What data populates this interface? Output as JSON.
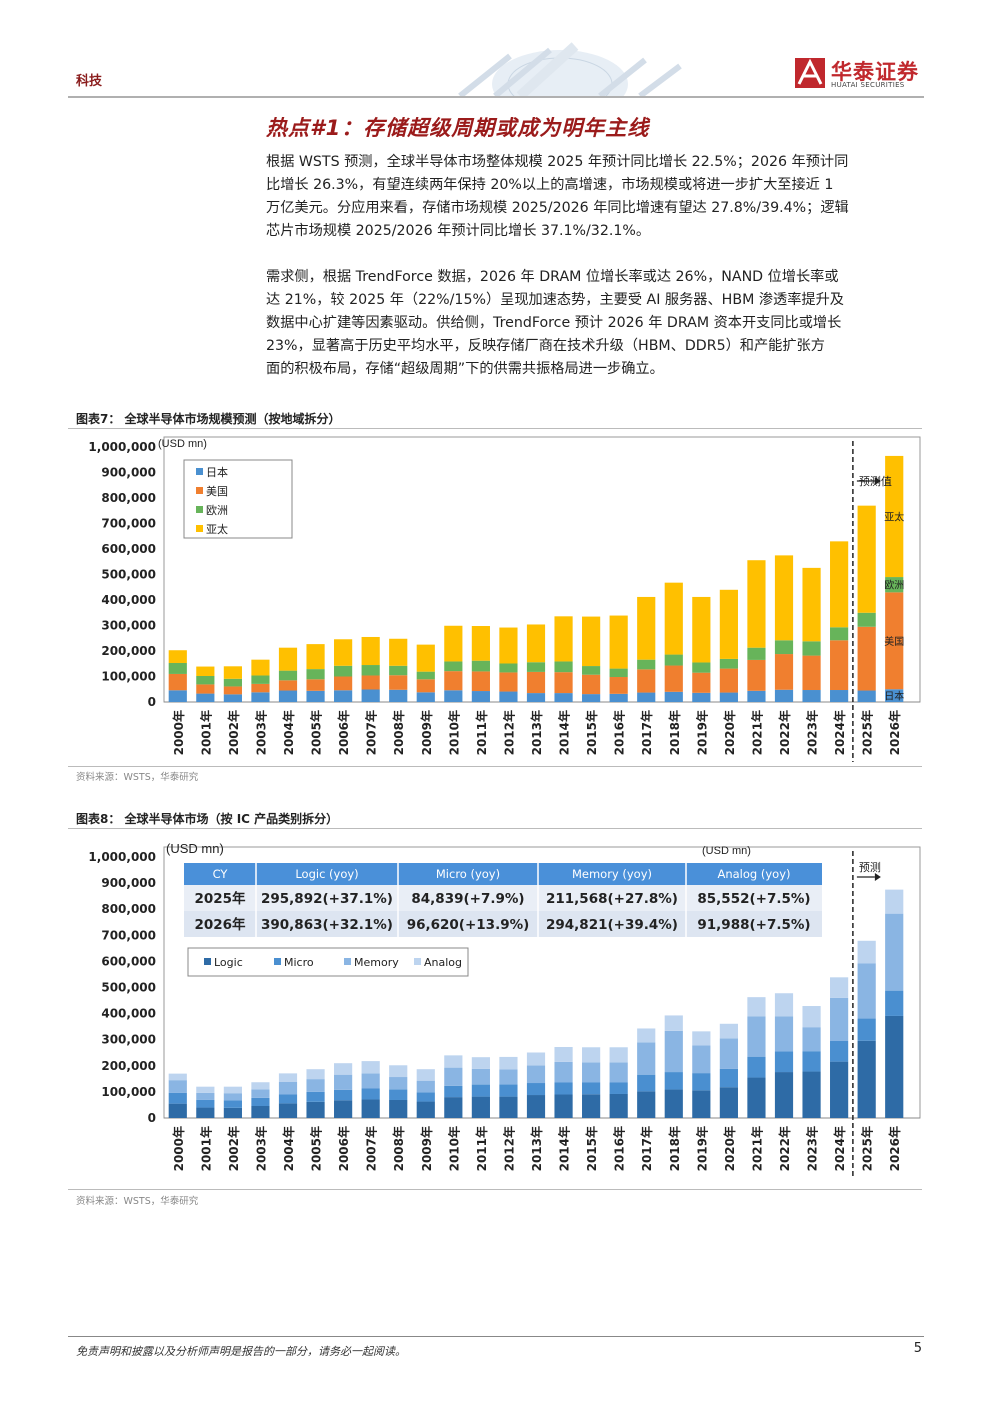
{
  "header": {
    "section": "科技",
    "logo_cn": "华泰证券",
    "logo_en": "HUATAI SECURITIES",
    "brand_color": "#c0282d"
  },
  "heading": "热点#1：存储超级周期或成为明年主线",
  "paragraph1": [
    "根据 WSTS 预测，全球半导体市场整体规模 2025 年预计同比增长 22.5%；2026 年预计同",
    "比增长 26.3%，有望连续两年保持 20%以上的高增速，市场规模或将进一步扩大至接近 1",
    "万亿美元。分应用来看，存储市场规模 2025/2026 年同比增速有望达 27.8%/39.4%；逻辑",
    "芯片市场规模 2025/2026 年预计同比增长 37.1%/32.1%。"
  ],
  "paragraph2": [
    "需求侧，根据 TrendForce 数据，2026 年 DRAM 位增长率或达 26%，NAND 位增长率或",
    "达 21%，较 2025 年（22%/15%）呈现加速态势，主要受 AI 服务器、HBM 渗透率提升及",
    "数据中心扩建等因素驱动。供给侧，TrendForce 预计 2026 年 DRAM 资本开支同比或增长",
    "23%，显著高于历史平均水平，反映存储厂商在技术升级（HBM、DDR5）和产能扩张方",
    "面的积极布局，存储“超级周期”下的供需共振格局进一步确立。"
  ],
  "figure7": {
    "title": "图表7：  全球半导体市场规模预测（按地域拆分）",
    "source": "资料来源：WSTS，华泰研究"
  },
  "figure8": {
    "title": "图表8：  全球半导体市场（按 IC 产品类别拆分）",
    "source": "资料来源：WSTS，华泰研究",
    "table": {
      "headers": [
        "CY",
        "Logic (yoy)",
        "Micro (yoy)",
        "Memory (yoy)",
        "Analog (yoy)"
      ],
      "rows": [
        [
          "2025年",
          "295,892(+37.1%)",
          "84,839(+7.9%)",
          "211,568(+27.8%)",
          "85,552(+7.5%)"
        ],
        [
          "2026年",
          "390,863(+32.1%)",
          "96,620(+13.9%)",
          "294,821(+39.4%)",
          "91,988(+7.5%)"
        ]
      ]
    }
  },
  "chart_data": [
    {
      "type": "bar",
      "stacked": true,
      "categories": [
        "2000年",
        "2001年",
        "2002年",
        "2003年",
        "2004年",
        "2005年",
        "2006年",
        "2007年",
        "2008年",
        "2009年",
        "2010年",
        "2011年",
        "2012年",
        "2013年",
        "2014年",
        "2015年",
        "2016年",
        "2017年",
        "2018年",
        "2019年",
        "2020年",
        "2021年",
        "2022年",
        "2023年",
        "2024年",
        "2025年",
        "2026年"
      ],
      "ylabel": "(USD mn)",
      "ylim": [
        0,
        1000000
      ],
      "yticks": [
        "0",
        "100,000",
        "200,000",
        "300,000",
        "400,000",
        "500,000",
        "600,000",
        "700,000",
        "800,000",
        "900,000",
        "1,000,000"
      ],
      "legend_position": "top-left",
      "forecast_label": "预测值",
      "forecast_from": "2025年",
      "series": [
        {
          "name": "日本",
          "color": "#4a90d0",
          "values": [
            46000,
            33000,
            30000,
            38000,
            45000,
            44000,
            46000,
            49000,
            48000,
            38000,
            46000,
            43000,
            41000,
            35000,
            35000,
            31000,
            32000,
            37000,
            40000,
            36000,
            37000,
            44000,
            48000,
            47000,
            47000,
            45000,
            50000
          ]
        },
        {
          "name": "美国",
          "color": "#f07f2f",
          "values": [
            64000,
            36000,
            31000,
            33000,
            40000,
            45000,
            54000,
            55000,
            57000,
            51000,
            75000,
            77000,
            75000,
            83000,
            82000,
            76000,
            66000,
            91000,
            103000,
            79000,
            94000,
            121000,
            140000,
            135000,
            195000,
            250000,
            380000
          ]
        },
        {
          "name": "欧洲",
          "color": "#67b45a",
          "values": [
            43000,
            33000,
            30000,
            33000,
            38000,
            40000,
            42000,
            41000,
            37000,
            30000,
            38000,
            42000,
            35000,
            38000,
            42000,
            34000,
            33000,
            38000,
            43000,
            40000,
            38000,
            48000,
            54000,
            56000,
            51000,
            55000,
            60000
          ]
        },
        {
          "name": "亚太",
          "color": "#ffc000",
          "values": [
            50000,
            37000,
            49000,
            62000,
            90000,
            98000,
            104000,
            110000,
            106000,
            106000,
            140000,
            136000,
            141000,
            148000,
            177000,
            194000,
            208000,
            246000,
            282000,
            257000,
            271000,
            343000,
            333000,
            288000,
            337000,
            420000,
            475000
          ]
        }
      ]
    },
    {
      "type": "bar",
      "stacked": true,
      "categories": [
        "2000年",
        "2001年",
        "2002年",
        "2003年",
        "2004年",
        "2005年",
        "2006年",
        "2007年",
        "2008年",
        "2009年",
        "2010年",
        "2011年",
        "2012年",
        "2013年",
        "2014年",
        "2015年",
        "2016年",
        "2017年",
        "2018年",
        "2019年",
        "2020年",
        "2021年",
        "2022年",
        "2023年",
        "2024年",
        "2025年",
        "2026年"
      ],
      "ylabel": "(USD mn)",
      "ylim": [
        0,
        1000000
      ],
      "yticks": [
        "0",
        "100,000",
        "200,000",
        "300,000",
        "400,000",
        "500,000",
        "600,000",
        "700,000",
        "800,000",
        "900,000",
        "1,000,000"
      ],
      "legend_position": "top-left",
      "forecast_label": "预测",
      "forecast_from": "2025年",
      "series": [
        {
          "name": "Logic",
          "color": "#2e6ba6",
          "values": [
            55000,
            40000,
            39000,
            46000,
            56000,
            62000,
            68000,
            71000,
            69000,
            63000,
            80000,
            82000,
            82000,
            88000,
            90000,
            91000,
            92000,
            102000,
            109000,
            106000,
            118000,
            155000,
            176000,
            178000,
            216000,
            296000,
            391000
          ]
        },
        {
          "name": "Micro",
          "color": "#4a8fd0",
          "values": [
            41000,
            30000,
            29000,
            31000,
            34000,
            38000,
            40000,
            42000,
            40000,
            35000,
            43000,
            46000,
            47000,
            46000,
            46000,
            45000,
            44000,
            64000,
            67000,
            66000,
            70000,
            80000,
            79000,
            78000,
            79000,
            85000,
            97000
          ]
        },
        {
          "name": "Memory",
          "color": "#8ab5e3",
          "values": [
            49000,
            26000,
            27000,
            33000,
            48000,
            49000,
            58000,
            58000,
            48000,
            45000,
            70000,
            60000,
            57000,
            67000,
            79000,
            77000,
            77000,
            124000,
            158000,
            106000,
            117000,
            154000,
            134000,
            92000,
            165000,
            212000,
            295000
          ]
        },
        {
          "name": "Analog",
          "color": "#bdd4ef",
          "values": [
            25000,
            24000,
            25000,
            27000,
            33000,
            38000,
            44000,
            47000,
            45000,
            44000,
            47000,
            45000,
            48000,
            50000,
            57000,
            58000,
            58000,
            53000,
            59000,
            54000,
            56000,
            74000,
            89000,
            81000,
            79000,
            86000,
            92000
          ]
        }
      ]
    }
  ],
  "footer": {
    "disclaimer": "免责声明和披露以及分析师声明是报告的一部分，请务必一起阅读。",
    "page": "5"
  }
}
